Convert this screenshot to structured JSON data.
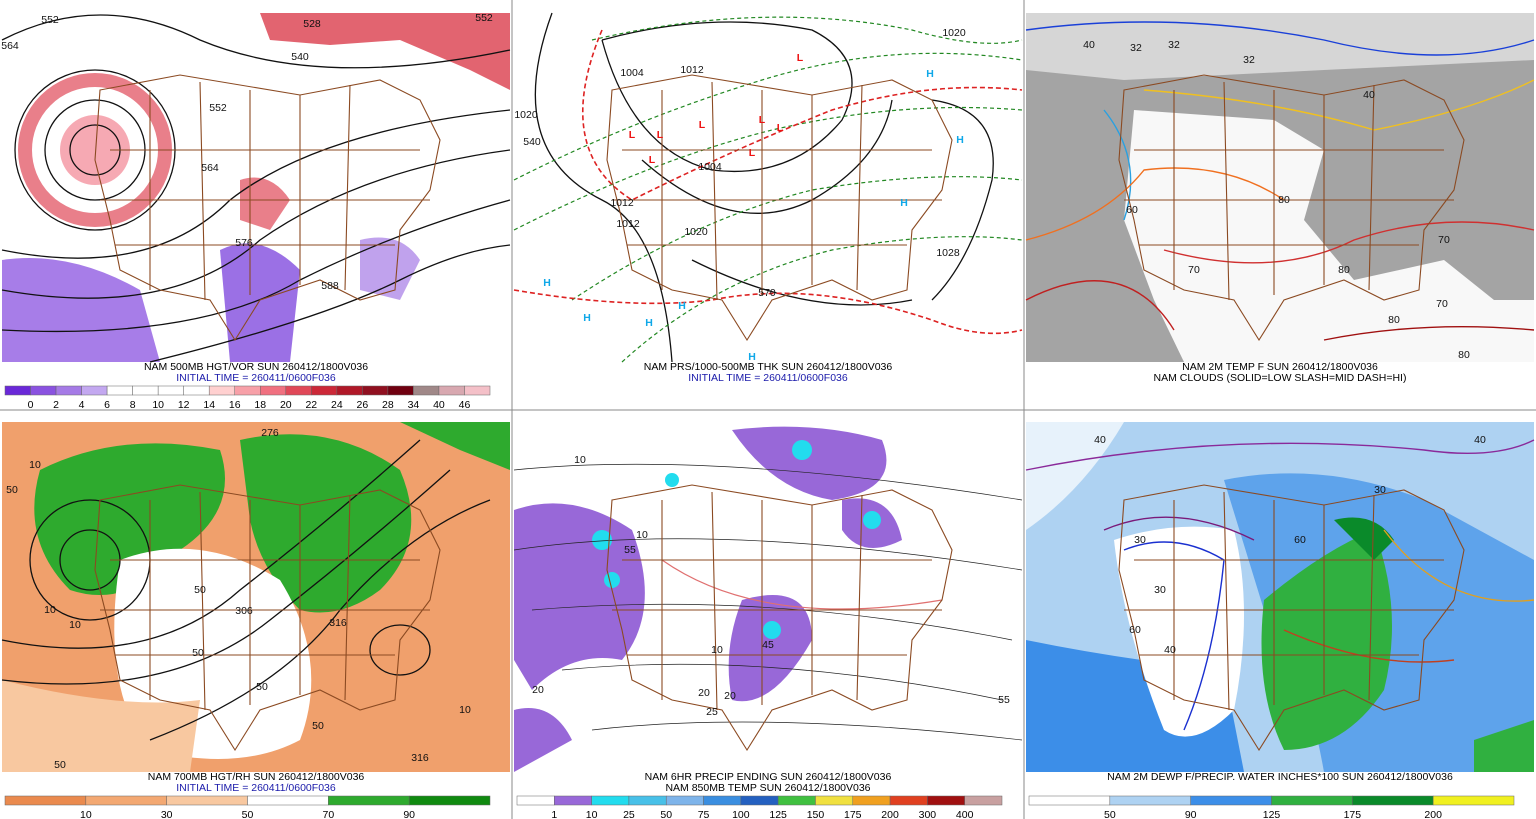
{
  "panels": [
    {
      "caption": [
        "NAM 500MB HGT/VOR SUN 260412/1800V036",
        "INITIAL TIME = 260411/0600F036"
      ],
      "caption_colors": [
        "#000000",
        "#1a1aaa"
      ],
      "map_labels": [
        "552",
        "564",
        "528",
        "540",
        "552",
        "564",
        "576",
        "588",
        "552"
      ],
      "colorbar": {
        "labels": [
          "0",
          "2",
          "4",
          "6",
          "8",
          "10",
          "12",
          "14",
          "16",
          "18",
          "20",
          "22",
          "24",
          "26",
          "28",
          "34",
          "40",
          "46"
        ],
        "colors": [
          "#6a28d8",
          "#8a52e0",
          "#a57ae6",
          "#c3a8f0",
          "#ffffff",
          "#ffffff",
          "#ffffff",
          "#ffffff",
          "#ffd0d0",
          "#f7a0a8",
          "#f07080",
          "#e04858",
          "#cc2838",
          "#b01828",
          "#901020",
          "#700010",
          "#a08888",
          "#d8a8b0",
          "#f4c0c8"
        ]
      }
    },
    {
      "caption": [
        "NAM PRS/1000-500MB THK SUN 260412/1800V036",
        "INITIAL TIME = 260411/0600F036"
      ],
      "caption_colors": [
        "#000000",
        "#1a1aaa"
      ],
      "map_labels": [
        "1020",
        "540",
        "1004",
        "1012",
        "1004",
        "1012",
        "1012",
        "1020",
        "1028",
        "570",
        "1020",
        "L",
        "L",
        "L",
        "L",
        "L",
        "L",
        "L",
        "L",
        "H",
        "H",
        "H",
        "H",
        "H",
        "H",
        "H",
        "H"
      ]
    },
    {
      "caption": [
        "NAM 2M TEMP F SUN 260412/1800V036",
        "NAM CLOUDS (SOLID=LOW SLASH=MID DASH=HI)"
      ],
      "caption_colors": [
        "#000000",
        "#000000"
      ],
      "map_labels": [
        "40",
        "32",
        "32",
        "40",
        "32",
        "60",
        "70",
        "80",
        "80",
        "70",
        "80",
        "70",
        "80"
      ]
    },
    {
      "caption": [
        "NAM 700MB HGT/RH SUN 260412/1800V036",
        "INITIAL TIME = 260411/0600F036"
      ],
      "caption_colors": [
        "#000000",
        "#1a1aaa"
      ],
      "map_labels": [
        "10",
        "50",
        "10",
        "10",
        "50",
        "306",
        "50",
        "316",
        "50",
        "50",
        "10",
        "316",
        "50",
        "276"
      ],
      "colorbar": {
        "labels": [
          "10",
          "30",
          "50",
          "70",
          "90"
        ],
        "colors": [
          "#ea8a4e",
          "#f3a872",
          "#f8c8a0",
          "#ffffff",
          "#2eaa2e",
          "#108a10"
        ]
      }
    },
    {
      "caption": [
        "NAM 6HR PRECIP ENDING SUN 260412/1800V036",
        "NAM 850MB TEMP SUN 260412/1800V036"
      ],
      "caption_colors": [
        "#000000",
        "#000000"
      ],
      "map_labels": [
        "10",
        "20",
        "20",
        "25",
        "20",
        "10",
        "10",
        "55",
        "45",
        "55"
      ],
      "colorbar": {
        "labels": [
          "1",
          "10",
          "25",
          "50",
          "75",
          "100",
          "125",
          "150",
          "175",
          "200",
          "300",
          "400"
        ],
        "colors": [
          "#ffffff",
          "#9868d8",
          "#22dcee",
          "#48c0e8",
          "#7eb4ea",
          "#3a8ee0",
          "#2460c0",
          "#40c040",
          "#f0e040",
          "#f0a020",
          "#e04020",
          "#a01010",
          "#c8a0a0"
        ]
      }
    },
    {
      "caption": [
        "NAM 2M DEWP F/PRECIP. WATER INCHES*100 SUN 260412/1800V036"
      ],
      "caption_colors": [
        "#000000"
      ],
      "map_labels": [
        "30",
        "40",
        "30",
        "60",
        "40",
        "30",
        "40",
        "60"
      ],
      "colorbar": {
        "labels": [
          "50",
          "90",
          "125",
          "175",
          "200"
        ],
        "colors": [
          "#ffffff",
          "#aed2f2",
          "#3c8ee8",
          "#30b040",
          "#0a8a2a",
          "#f0f020"
        ]
      }
    }
  ]
}
